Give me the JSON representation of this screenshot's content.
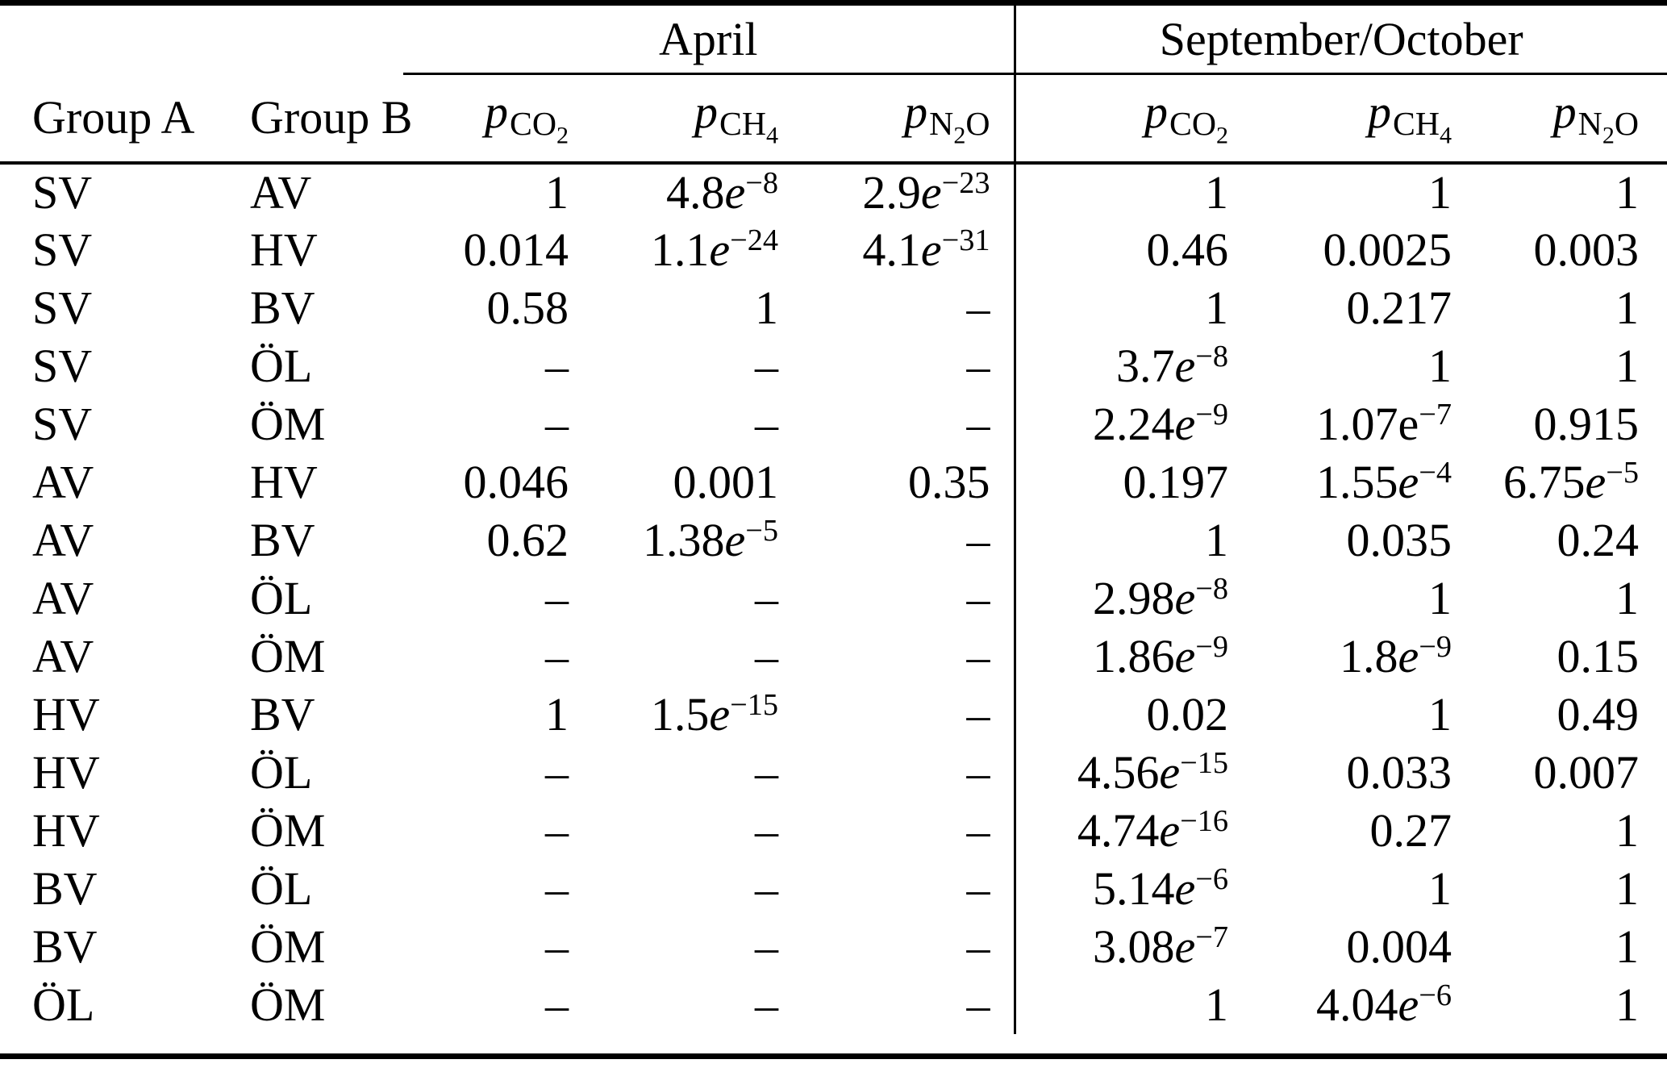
{
  "header": {
    "group_a": "Group A",
    "group_b": "Group B",
    "seasons": [
      "April",
      "September/October"
    ],
    "p_symbol": "p",
    "gas_columns": [
      "CO2",
      "CH4",
      "N2O"
    ]
  },
  "missing_value_symbol": "–",
  "colors": {
    "text": "#000000",
    "background": "#ffffff",
    "rules": "#000000"
  },
  "rows": [
    {
      "group_a": "SV",
      "group_b": "AV",
      "april": [
        "1",
        "4.8e−8",
        "2.9e−23"
      ],
      "sep_oct": [
        "1",
        "1",
        "1"
      ]
    },
    {
      "group_a": "SV",
      "group_b": "HV",
      "april": [
        "0.014",
        "1.1e−24",
        "4.1e−31"
      ],
      "sep_oct": [
        "0.46",
        "0.0025",
        "0.003"
      ]
    },
    {
      "group_a": "SV",
      "group_b": "BV",
      "april": [
        "0.58",
        "1",
        "–"
      ],
      "sep_oct": [
        "1",
        "0.217",
        "1"
      ]
    },
    {
      "group_a": "SV",
      "group_b": "ÖL",
      "april": [
        "–",
        "–",
        "–"
      ],
      "sep_oct": [
        "3.7e−8",
        "1",
        "1"
      ]
    },
    {
      "group_a": "SV",
      "group_b": "ÖM",
      "april": [
        "–",
        "–",
        "–"
      ],
      "sep_oct": [
        "2.24e−9",
        "1.07E−7",
        "0.915"
      ]
    },
    {
      "group_a": "AV",
      "group_b": "HV",
      "april": [
        "0.046",
        "0.001",
        "0.35"
      ],
      "sep_oct": [
        "0.197",
        "1.55e−4",
        "6.75e−5"
      ]
    },
    {
      "group_a": "AV",
      "group_b": "BV",
      "april": [
        "0.62",
        "1.38e−5",
        "–"
      ],
      "sep_oct": [
        "1",
        "0.035",
        "0.24"
      ]
    },
    {
      "group_a": "AV",
      "group_b": "ÖL",
      "april": [
        "–",
        "–",
        "–"
      ],
      "sep_oct": [
        "2.98e−8",
        "1",
        "1"
      ]
    },
    {
      "group_a": "AV",
      "group_b": "ÖM",
      "april": [
        "–",
        "–",
        "–"
      ],
      "sep_oct": [
        "1.86e−9",
        "1.8e−9",
        "0.15"
      ]
    },
    {
      "group_a": "HV",
      "group_b": "BV",
      "april": [
        "1",
        "1.5e−15",
        "–"
      ],
      "sep_oct": [
        "0.02",
        "1",
        "0.49"
      ]
    },
    {
      "group_a": "HV",
      "group_b": "ÖL",
      "april": [
        "–",
        "–",
        "–"
      ],
      "sep_oct": [
        "4.56e−15",
        "0.033",
        "0.007"
      ]
    },
    {
      "group_a": "HV",
      "group_b": "ÖM",
      "april": [
        "–",
        "–",
        "–"
      ],
      "sep_oct": [
        "4.74e−16",
        "0.27",
        "1"
      ]
    },
    {
      "group_a": "BV",
      "group_b": "ÖL",
      "april": [
        "–",
        "–",
        "–"
      ],
      "sep_oct": [
        "5.14e−6",
        "1",
        "1"
      ]
    },
    {
      "group_a": "BV",
      "group_b": "ÖM",
      "april": [
        "–",
        "–",
        "–"
      ],
      "sep_oct": [
        "3.08e−7",
        "0.004",
        "1"
      ]
    },
    {
      "group_a": "ÖL",
      "group_b": "ÖM",
      "april": [
        "–",
        "–",
        "–"
      ],
      "sep_oct": [
        "1",
        "4.04e−6",
        "1"
      ]
    }
  ]
}
